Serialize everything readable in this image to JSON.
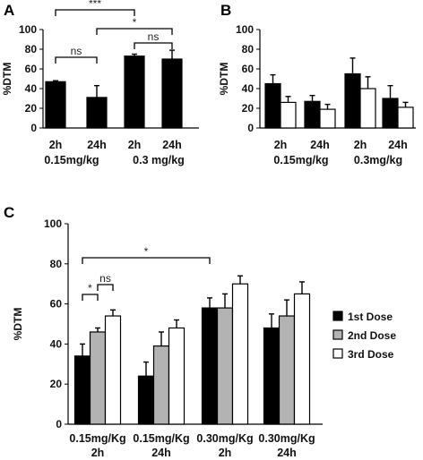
{
  "chart_data": [
    {
      "panel": "A",
      "type": "bar",
      "ylabel": "%DTM",
      "ylim": [
        0,
        100
      ],
      "yticks": [
        0,
        20,
        40,
        60,
        80,
        100
      ],
      "categories": [
        "2h",
        "24h",
        "2h",
        "24h"
      ],
      "groups": [
        "0.15mg/kg",
        "0.3 mg/kg"
      ],
      "series": [
        {
          "color": "#000000",
          "values": [
            47,
            31,
            73,
            70
          ],
          "errors": [
            1,
            12,
            2,
            9
          ]
        }
      ],
      "annotations": [
        {
          "label": "***",
          "from": 0,
          "to": 2
        },
        {
          "label": "*",
          "from": 1,
          "to": 3
        },
        {
          "label": "ns",
          "from": 0,
          "to": 1
        },
        {
          "label": "ns",
          "from": 2,
          "to": 3
        }
      ]
    },
    {
      "panel": "B",
      "type": "bar",
      "ylabel": "%DTM",
      "ylim": [
        0,
        100
      ],
      "yticks": [
        0,
        20,
        40,
        60,
        80,
        100
      ],
      "categories": [
        "2h",
        "24h",
        "2h",
        "24h"
      ],
      "groups": [
        "0.15mg/kg",
        "0.3mg/kg"
      ],
      "series": [
        {
          "color": "#000000",
          "values": [
            45,
            27,
            55,
            30
          ],
          "errors": [
            9,
            6,
            16,
            13
          ]
        },
        {
          "color": "#ffffff",
          "values": [
            26,
            19,
            40,
            21
          ],
          "errors": [
            6,
            5,
            12,
            5
          ]
        }
      ]
    },
    {
      "panel": "C",
      "type": "bar",
      "ylabel": "%DTM",
      "ylim": [
        0,
        100
      ],
      "yticks": [
        0,
        20,
        40,
        60,
        80,
        100
      ],
      "categories": [
        [
          "0.15mg/Kg",
          "2h"
        ],
        [
          "0.15mg/Kg",
          "24h"
        ],
        [
          "0.30mg/Kg",
          "2h"
        ],
        [
          "0.30mg/Kg",
          "24h"
        ]
      ],
      "legend_position": "right",
      "series": [
        {
          "name": "1st Dose",
          "color": "#000000",
          "values": [
            34,
            24,
            58,
            48
          ],
          "errors": [
            6,
            7,
            5,
            7
          ]
        },
        {
          "name": "2nd Dose",
          "color": "#b3b3b3",
          "values": [
            46,
            39,
            58,
            54
          ],
          "errors": [
            2,
            7,
            7,
            8
          ]
        },
        {
          "name": "3rd Dose",
          "color": "#ffffff",
          "values": [
            54,
            48,
            70,
            65
          ],
          "errors": [
            3,
            4,
            4,
            6
          ]
        }
      ],
      "annotations": [
        {
          "label": "*",
          "from": [
            0,
            0
          ],
          "to": [
            2,
            0
          ]
        },
        {
          "label": "*",
          "from": [
            0,
            0
          ],
          "to": [
            0,
            1
          ]
        },
        {
          "label": "ns",
          "from": [
            0,
            1
          ],
          "to": [
            0,
            2
          ]
        }
      ]
    }
  ]
}
